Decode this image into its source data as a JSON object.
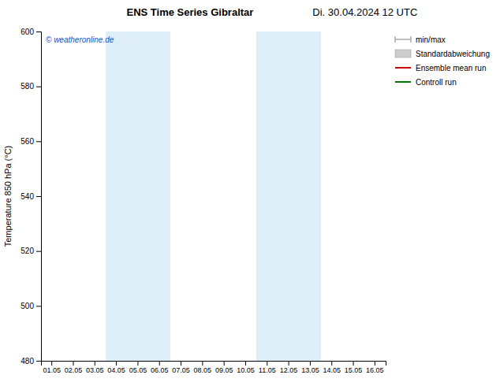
{
  "chart_data": {
    "type": "line",
    "title": "ENS Time Series Gibraltar",
    "subtitle": "Di. 30.04.2024 12 UTC",
    "y_label": "Temperature 850 hPa (°C)",
    "categories": [
      "01.05",
      "02.05",
      "03.05",
      "04.05",
      "05.05",
      "06.05",
      "07.05",
      "08.05",
      "09.05",
      "10.05",
      "11.05",
      "12.05",
      "13.05",
      "14.05",
      "15.05",
      "16.05"
    ],
    "series": [
      {
        "name": "min/max",
        "type": "range",
        "color": "#aaaaaa",
        "values": [
          null,
          null,
          null,
          null,
          null,
          null,
          null,
          null,
          null,
          null,
          null,
          null,
          null,
          null,
          null,
          null
        ]
      },
      {
        "name": "Standardabweichung",
        "type": "area",
        "color": "#cccccc",
        "values": [
          null,
          null,
          null,
          null,
          null,
          null,
          null,
          null,
          null,
          null,
          null,
          null,
          null,
          null,
          null,
          null
        ]
      },
      {
        "name": "Ensemble mean run",
        "type": "line",
        "color": "#cc0000",
        "values": [
          null,
          null,
          null,
          null,
          null,
          null,
          null,
          null,
          null,
          null,
          null,
          null,
          null,
          null,
          null,
          null
        ]
      },
      {
        "name": "Controll run",
        "type": "line",
        "color": "#007700",
        "values": [
          null,
          null,
          null,
          null,
          null,
          null,
          null,
          null,
          null,
          null,
          null,
          null,
          null,
          null,
          null,
          null
        ]
      }
    ],
    "ylim": [
      480,
      600
    ],
    "yticks": [
      480,
      500,
      520,
      540,
      560,
      580,
      600
    ],
    "grid": false,
    "legend": "right",
    "shaded_regions": [
      {
        "from": "04.05",
        "to": "06.05",
        "color": "#ddeef8"
      },
      {
        "from": "11.05",
        "to": "13.05",
        "color": "#ddeef8"
      }
    ],
    "annotations": [
      {
        "text": "© weatheronline.de",
        "color": "#1155cc"
      }
    ]
  }
}
